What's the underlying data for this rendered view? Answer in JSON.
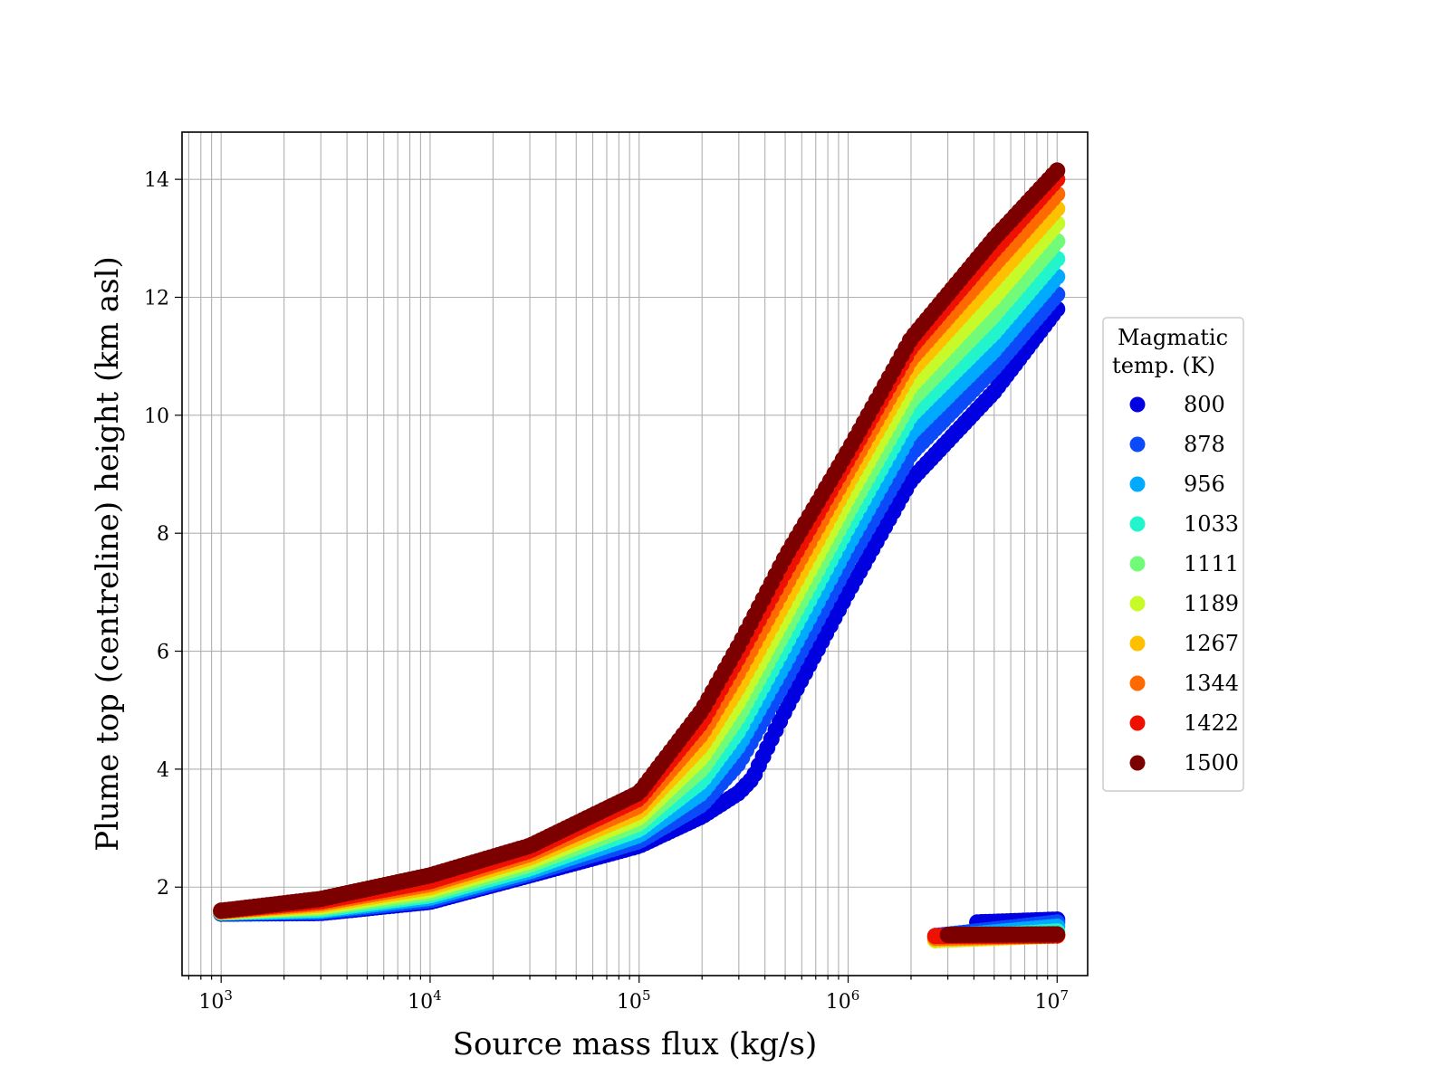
{
  "chart_data": {
    "type": "scatter",
    "xlabel": "Source mass flux (kg/s)",
    "ylabel": "Plume top (centreline) height (km asl)",
    "xscale": "log",
    "xlim": [
      650,
      14000000
    ],
    "ylim": [
      0.5,
      14.8
    ],
    "x_ticks": [
      {
        "base": "10",
        "exp": "3"
      },
      {
        "base": "10",
        "exp": "4"
      },
      {
        "base": "10",
        "exp": "5"
      },
      {
        "base": "10",
        "exp": "6"
      },
      {
        "base": "10",
        "exp": "7"
      }
    ],
    "y_ticks": [
      "2",
      "4",
      "6",
      "8",
      "10",
      "12",
      "14"
    ],
    "grid": true,
    "legend": {
      "title_line1": "Magmatic",
      "title_line2": "temp. (K)",
      "placement": "right, outside plot"
    },
    "x_range": [
      1000,
      10000000
    ],
    "series": [
      {
        "name": "800",
        "color": "#0000e0",
        "upper_knots": [
          [
            1000,
            1.55
          ],
          [
            3000,
            1.56
          ],
          [
            10000,
            1.75
          ],
          [
            30000,
            2.2
          ],
          [
            100000,
            2.7
          ],
          [
            200000,
            3.2
          ],
          [
            300000,
            3.6
          ],
          [
            350000,
            3.85
          ],
          [
            500000,
            5.0
          ],
          [
            1000000,
            7.0
          ],
          [
            2000000,
            8.9
          ],
          [
            5000000,
            10.4
          ],
          [
            10000000,
            11.8
          ]
        ],
        "lower_start": 4000000,
        "lower_knots": [
          [
            4000000,
            1.4
          ],
          [
            10000000,
            1.45
          ]
        ]
      },
      {
        "name": "878",
        "color": "#0a4af8",
        "upper_knots": [
          [
            1000,
            1.56
          ],
          [
            3000,
            1.58
          ],
          [
            10000,
            1.78
          ],
          [
            30000,
            2.23
          ],
          [
            100000,
            2.78
          ],
          [
            200000,
            3.4
          ],
          [
            300000,
            4.1
          ],
          [
            500000,
            5.5
          ],
          [
            1000000,
            7.5
          ],
          [
            2000000,
            9.35
          ],
          [
            5000000,
            10.8
          ],
          [
            10000000,
            12.05
          ]
        ],
        "lower_start": 2600000,
        "lower_knots": [
          [
            2600000,
            1.17
          ],
          [
            10000000,
            1.4
          ]
        ]
      },
      {
        "name": "956",
        "color": "#00aaff",
        "upper_knots": [
          [
            1000,
            1.57
          ],
          [
            3000,
            1.6
          ],
          [
            10000,
            1.82
          ],
          [
            30000,
            2.27
          ],
          [
            100000,
            2.88
          ],
          [
            200000,
            3.6
          ],
          [
            300000,
            4.4
          ],
          [
            500000,
            5.8
          ],
          [
            1000000,
            7.8
          ],
          [
            2000000,
            9.7
          ],
          [
            5000000,
            11.1
          ],
          [
            10000000,
            12.35
          ]
        ],
        "lower_start": 2600000,
        "lower_knots": [
          [
            2600000,
            1.14
          ],
          [
            10000000,
            1.33
          ]
        ]
      },
      {
        "name": "1033",
        "color": "#22f5cc",
        "upper_knots": [
          [
            1000,
            1.57
          ],
          [
            3000,
            1.62
          ],
          [
            10000,
            1.86
          ],
          [
            30000,
            2.32
          ],
          [
            100000,
            2.98
          ],
          [
            200000,
            3.8
          ],
          [
            300000,
            4.65
          ],
          [
            500000,
            6.1
          ],
          [
            1000000,
            8.1
          ],
          [
            2000000,
            10.0
          ],
          [
            5000000,
            11.4
          ],
          [
            10000000,
            12.65
          ]
        ],
        "lower_start": 2600000,
        "lower_knots": [
          [
            2600000,
            1.12
          ],
          [
            10000000,
            1.25
          ]
        ]
      },
      {
        "name": "1111",
        "color": "#72fb78",
        "upper_knots": [
          [
            1000,
            1.58
          ],
          [
            3000,
            1.65
          ],
          [
            10000,
            1.9
          ],
          [
            30000,
            2.38
          ],
          [
            100000,
            3.08
          ],
          [
            200000,
            4.0
          ],
          [
            300000,
            4.9
          ],
          [
            500000,
            6.35
          ],
          [
            1000000,
            8.35
          ],
          [
            2000000,
            10.25
          ],
          [
            5000000,
            11.7
          ],
          [
            10000000,
            12.95
          ]
        ],
        "lower_start": 2600000,
        "lower_knots": [
          [
            2600000,
            1.1
          ],
          [
            10000000,
            1.2
          ]
        ]
      },
      {
        "name": "1189",
        "color": "#c8fa2a",
        "upper_knots": [
          [
            1000,
            1.58
          ],
          [
            3000,
            1.67
          ],
          [
            10000,
            1.95
          ],
          [
            30000,
            2.44
          ],
          [
            100000,
            3.18
          ],
          [
            200000,
            4.2
          ],
          [
            300000,
            5.15
          ],
          [
            500000,
            6.6
          ],
          [
            1000000,
            8.6
          ],
          [
            2000000,
            10.5
          ],
          [
            5000000,
            12.0
          ],
          [
            10000000,
            13.25
          ]
        ],
        "lower_start": 2600000,
        "lower_knots": [
          [
            2600000,
            1.1
          ],
          [
            10000000,
            1.18
          ]
        ]
      },
      {
        "name": "1267",
        "color": "#ffc000",
        "upper_knots": [
          [
            1000,
            1.59
          ],
          [
            3000,
            1.7
          ],
          [
            10000,
            2.0
          ],
          [
            30000,
            2.5
          ],
          [
            100000,
            3.28
          ],
          [
            200000,
            4.4
          ],
          [
            300000,
            5.4
          ],
          [
            500000,
            6.85
          ],
          [
            1000000,
            8.85
          ],
          [
            2000000,
            10.75
          ],
          [
            5000000,
            12.3
          ],
          [
            10000000,
            13.5
          ]
        ],
        "lower_start": 2600000,
        "lower_knots": [
          [
            2600000,
            1.12
          ],
          [
            10000000,
            1.18
          ]
        ]
      },
      {
        "name": "1344",
        "color": "#ff6a00",
        "upper_knots": [
          [
            1000,
            1.59
          ],
          [
            3000,
            1.73
          ],
          [
            10000,
            2.05
          ],
          [
            30000,
            2.56
          ],
          [
            100000,
            3.38
          ],
          [
            200000,
            4.6
          ],
          [
            300000,
            5.65
          ],
          [
            500000,
            7.1
          ],
          [
            1000000,
            9.05
          ],
          [
            2000000,
            10.95
          ],
          [
            5000000,
            12.55
          ],
          [
            10000000,
            13.75
          ]
        ],
        "lower_start": 2600000,
        "lower_knots": [
          [
            2600000,
            1.14
          ],
          [
            10000000,
            1.18
          ]
        ]
      },
      {
        "name": "1422",
        "color": "#ee1000",
        "upper_knots": [
          [
            1000,
            1.6
          ],
          [
            3000,
            1.76
          ],
          [
            10000,
            2.1
          ],
          [
            30000,
            2.62
          ],
          [
            100000,
            3.5
          ],
          [
            200000,
            4.8
          ],
          [
            300000,
            5.9
          ],
          [
            500000,
            7.35
          ],
          [
            1000000,
            9.25
          ],
          [
            2000000,
            11.15
          ],
          [
            5000000,
            12.8
          ],
          [
            10000000,
            14.0
          ]
        ],
        "lower_start": 2600000,
        "lower_knots": [
          [
            2600000,
            1.17
          ],
          [
            10000000,
            1.18
          ]
        ]
      },
      {
        "name": "1500",
        "color": "#7d0000",
        "upper_knots": [
          [
            1000,
            1.6
          ],
          [
            3000,
            1.8
          ],
          [
            10000,
            2.2
          ],
          [
            30000,
            2.7
          ],
          [
            100000,
            3.6
          ],
          [
            200000,
            5.0
          ],
          [
            300000,
            6.1
          ],
          [
            500000,
            7.6
          ],
          [
            1000000,
            9.4
          ],
          [
            2000000,
            11.3
          ],
          [
            5000000,
            13.0
          ],
          [
            10000000,
            14.15
          ]
        ],
        "lower_start": 2900000,
        "lower_knots": [
          [
            2900000,
            1.19
          ],
          [
            10000000,
            1.2
          ]
        ]
      }
    ]
  }
}
